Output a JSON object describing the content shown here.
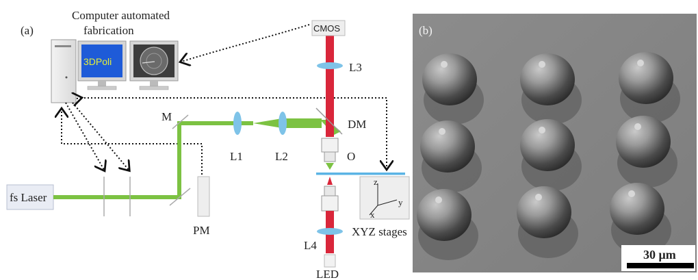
{
  "panel_a": {
    "label": "(a)",
    "caption_line1": "Computer automated",
    "caption_line2": "fabrication",
    "screen_text": "3DPoli",
    "laser": "fs Laser",
    "mirror": "M",
    "power_meter": "PM",
    "lens_1": "L1",
    "lens_2": "L2",
    "lens_3": "L3",
    "lens_4": "L4",
    "dichroic": "DM",
    "objective": "O",
    "camera": "CMOS",
    "led": "LED",
    "stages": "XYZ stages",
    "axis_z": "z",
    "axis_y": "y",
    "axis_x": "x"
  },
  "panel_b": {
    "label": "(b)",
    "scale_bar": "30 μm"
  },
  "colors": {
    "beam_green": "#7cc242",
    "beam_red": "#d9263a",
    "lens_blue": "#7ec3e8",
    "stage_blue": "#5bb4e5",
    "sem_bg": "#8a8a8a",
    "screen_blue": "#1e5bd8",
    "screen_text": "#e6f03a"
  }
}
